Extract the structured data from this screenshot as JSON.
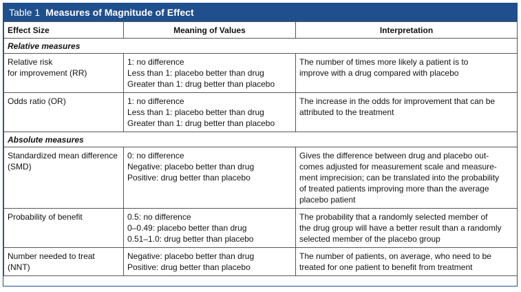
{
  "title": {
    "label": "Table 1",
    "name": "Measures of Magnitude of Effect"
  },
  "headers": [
    "Effect Size",
    "Meaning of Values",
    "Interpretation"
  ],
  "sections": [
    {
      "name": "Relative measures",
      "rows": [
        {
          "effect": [
            "Relative risk",
            "for improvement (RR)"
          ],
          "meaning": [
            "1: no difference",
            "Less than 1: placebo better than drug",
            "Greater than 1: drug better than placebo"
          ],
          "interpretation": [
            "The number of times more likely a patient is to",
            "improve with a drug compared with placebo"
          ]
        },
        {
          "effect": [
            "Odds ratio (OR)"
          ],
          "meaning": [
            "1: no difference",
            "Less than 1: placebo better than drug",
            "Greater than 1: drug better than placebo"
          ],
          "interpretation": [
            "The increase in the odds for improvement that can be",
            "attributed to the treatment"
          ]
        }
      ]
    },
    {
      "name": "Absolute measures",
      "rows": [
        {
          "effect": [
            "Standardized mean difference",
            "(SMD)"
          ],
          "meaning": [
            "0: no difference",
            "Negative: placebo better than drug",
            "Positive: drug better than placebo"
          ],
          "interpretation": [
            "Gives the difference between drug and placebo out-",
            "comes adjusted for measurement scale and measure-",
            "ment imprecision; can be translated into the probability",
            "of treated patients improving more than the average",
            "placebo patient"
          ]
        },
        {
          "effect": [
            "Probability of benefit"
          ],
          "meaning": [
            "0.5: no difference",
            "0–0.49: placebo better than drug",
            "0.51–1.0: drug better than placebo"
          ],
          "interpretation": [
            "The probability that a randomly selected member of",
            "the drug group will have a better result than a randomly",
            "selected member of the placebo group"
          ]
        },
        {
          "effect": [
            "Number needed to treat",
            "(NNT)"
          ],
          "meaning": [
            "Negative: placebo better than drug",
            "Positive: drug better than placebo"
          ],
          "interpretation": [
            "The number of patients, on average, who need to be",
            "treated for one patient to benefit from treatment"
          ]
        }
      ]
    }
  ]
}
